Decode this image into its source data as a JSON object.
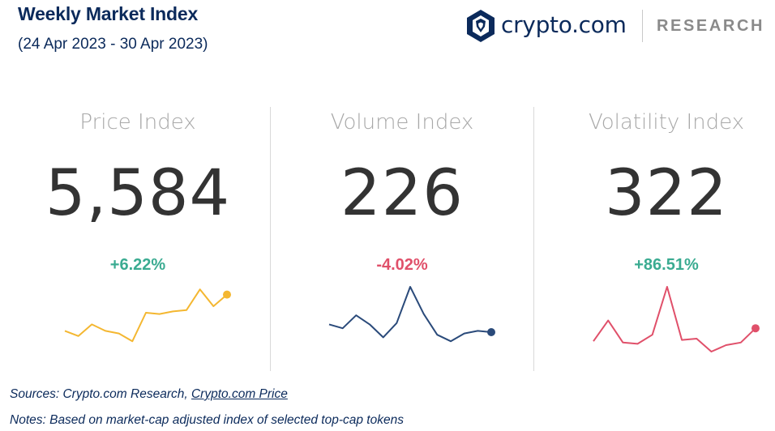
{
  "header": {
    "title": "Weekly Market Index",
    "subtitle": "(24 Apr 2023 - 30 Apr 2023)"
  },
  "brand": {
    "name": "crypto.com",
    "tag": "RESEARCH",
    "logo_icon": "crypto-com-lion-shield-icon",
    "color": "#0b2a5b"
  },
  "colors": {
    "positive": "#3aab91",
    "negative": "#e0506a",
    "label": "#a8a8a8",
    "value": "#333333"
  },
  "chart_data": [
    {
      "type": "line",
      "label": "Price Index",
      "value": "5,584",
      "change": "+6.22%",
      "change_color": "#3aab91",
      "line_color": "#f4b731",
      "values": [
        3.2,
        2.4,
        4.2,
        3.2,
        2.8,
        1.6,
        6.0,
        5.8,
        6.2,
        6.4,
        9.6,
        7.0,
        8.8
      ],
      "ylim": [
        0,
        10
      ]
    },
    {
      "type": "line",
      "label": "Volume Index",
      "value": "226",
      "change": "-4.02%",
      "change_color": "#e0506a",
      "line_color": "#2a4a7a",
      "values": [
        4.2,
        3.6,
        5.6,
        4.2,
        2.2,
        4.4,
        10.0,
        5.8,
        2.6,
        1.6,
        2.8,
        3.2,
        3.0
      ],
      "ylim": [
        0,
        10
      ]
    },
    {
      "type": "line",
      "label": "Volatility Index",
      "value": "322",
      "change": "+86.51%",
      "change_color": "#3aab91",
      "line_color": "#e0506a",
      "values": [
        1.6,
        4.8,
        1.4,
        1.2,
        2.6,
        10.0,
        1.8,
        2.0,
        0.0,
        1.0,
        1.4,
        3.6
      ],
      "ylim": [
        0,
        10
      ]
    }
  ],
  "footer": {
    "sources_prefix": "Sources: Crypto.com Research, ",
    "sources_link": "Crypto.com Price",
    "notes": "Notes: Based on market-cap adjusted index of selected top-cap tokens"
  }
}
